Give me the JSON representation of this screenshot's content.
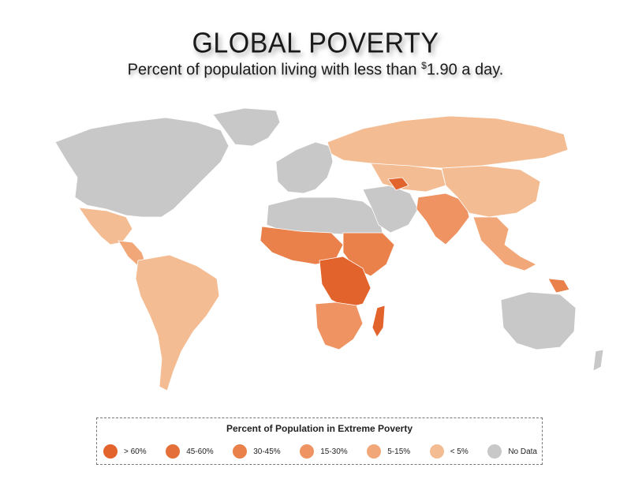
{
  "header": {
    "title": "GLOBAL POVERTY",
    "subtitle_prefix": "Percent of population living with less than ",
    "subtitle_currency": "$",
    "subtitle_value": "1.90",
    "subtitle_suffix": " a day."
  },
  "colors": {
    "gt60": "#e2632b",
    "p45_60": "#e56f38",
    "p30_45": "#ea814b",
    "p15_30": "#ee9361",
    "p5_15": "#f1a778",
    "lt5": "#f4bc92",
    "no_data": "#c8c8c8",
    "ocean": "#ffffff"
  },
  "legend": {
    "title": "Percent of Population in Extreme Poverty",
    "items": [
      {
        "label": "> 60%",
        "color": "#e2632b"
      },
      {
        "label": "45-60%",
        "color": "#e56f38"
      },
      {
        "label": "30-45%",
        "color": "#ea814b"
      },
      {
        "label": "15-30%",
        "color": "#ee9361"
      },
      {
        "label": "5-15%",
        "color": "#f1a778"
      },
      {
        "label": "< 5%",
        "color": "#f4bc92"
      },
      {
        "label": "No Data",
        "color": "#c8c8c8"
      }
    ]
  },
  "regions": [
    {
      "name": "North America",
      "category": "No Data"
    },
    {
      "name": "Greenland",
      "category": "No Data"
    },
    {
      "name": "Mexico",
      "category": "< 5%"
    },
    {
      "name": "Central America",
      "category": "5-15%"
    },
    {
      "name": "South America",
      "category": "< 5%"
    },
    {
      "name": "Western Europe",
      "category": "No Data"
    },
    {
      "name": "Russia",
      "category": "< 5%"
    },
    {
      "name": "North Africa",
      "category": "No Data"
    },
    {
      "name": "West Africa",
      "category": "30-45%"
    },
    {
      "name": "Central Africa",
      "category": "> 60%"
    },
    {
      "name": "Southern Africa",
      "category": "15-30%"
    },
    {
      "name": "Madagascar",
      "category": "> 60%"
    },
    {
      "name": "Middle East",
      "category": "No Data"
    },
    {
      "name": "Central Asia",
      "category": "< 5%"
    },
    {
      "name": "South Asia",
      "category": "15-30%"
    },
    {
      "name": "China",
      "category": "< 5%"
    },
    {
      "name": "Southeast Asia",
      "category": "5-15%"
    },
    {
      "name": "Australia",
      "category": "No Data"
    },
    {
      "name": "Papua New Guinea",
      "category": "30-45%"
    }
  ]
}
